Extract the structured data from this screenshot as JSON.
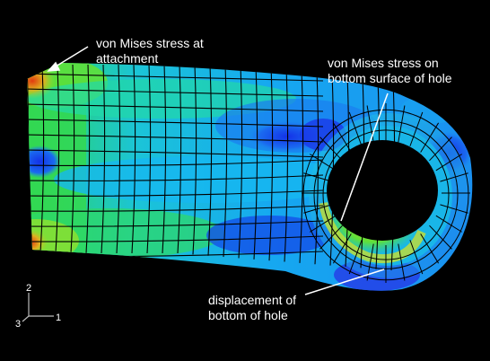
{
  "annotations": {
    "attachment": [
      "von Mises stress at",
      "attachment"
    ],
    "hole_bottom_surface": [
      "von Mises stress on",
      "bottom surface of hole"
    ],
    "hole_displacement": [
      "displacement of",
      "bottom of hole"
    ]
  },
  "triad": {
    "x_label": "1",
    "y_label": "2",
    "z_label": "3"
  },
  "colors": {
    "background": "#000000",
    "mesh_lines": "#000000",
    "annotation": "#ffffff",
    "stress_low": "#1030e0",
    "stress_mid_low": "#19b6ff",
    "stress_mid": "#22d8a8",
    "stress_mid_high": "#5fe03a",
    "stress_high": "#d8e020",
    "stress_max": "#e23a10"
  }
}
